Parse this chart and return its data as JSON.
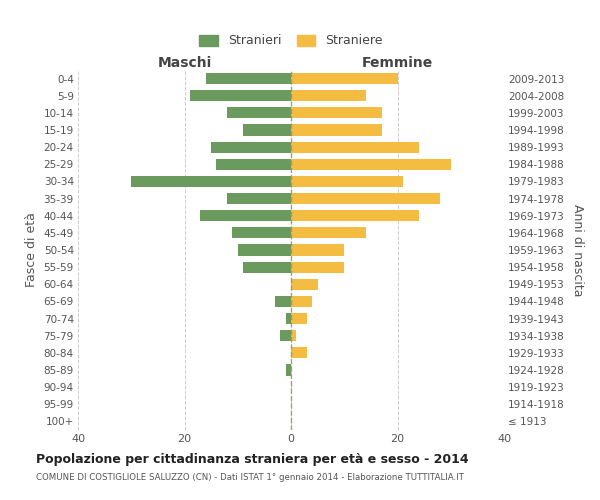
{
  "age_groups": [
    "100+",
    "95-99",
    "90-94",
    "85-89",
    "80-84",
    "75-79",
    "70-74",
    "65-69",
    "60-64",
    "55-59",
    "50-54",
    "45-49",
    "40-44",
    "35-39",
    "30-34",
    "25-29",
    "20-24",
    "15-19",
    "10-14",
    "5-9",
    "0-4"
  ],
  "birth_years": [
    "≤ 1913",
    "1914-1918",
    "1919-1923",
    "1924-1928",
    "1929-1933",
    "1934-1938",
    "1939-1943",
    "1944-1948",
    "1949-1953",
    "1954-1958",
    "1959-1963",
    "1964-1968",
    "1969-1973",
    "1974-1978",
    "1979-1983",
    "1984-1988",
    "1989-1993",
    "1994-1998",
    "1999-2003",
    "2004-2008",
    "2009-2013"
  ],
  "males": [
    0,
    0,
    0,
    1,
    0,
    2,
    1,
    3,
    0,
    9,
    10,
    11,
    17,
    12,
    30,
    14,
    15,
    9,
    12,
    19,
    16
  ],
  "females": [
    0,
    0,
    0,
    0,
    3,
    1,
    3,
    4,
    5,
    10,
    10,
    14,
    24,
    28,
    21,
    30,
    24,
    17,
    17,
    14,
    20
  ],
  "male_color": "#6a9a5e",
  "female_color": "#f5bc42",
  "title": "Popolazione per cittadinanza straniera per età e sesso - 2014",
  "subtitle": "COMUNE DI COSTIGLIOLE SALUZZO (CN) - Dati ISTAT 1° gennaio 2014 - Elaborazione TUTTITALIA.IT",
  "ylabel_left": "Fasce di età",
  "ylabel_right": "Anni di nascita",
  "xlabel_left": "Maschi",
  "xlabel_right": "Femmine",
  "legend_males": "Stranieri",
  "legend_females": "Straniere",
  "xlim": 40,
  "background_color": "#ffffff",
  "grid_color": "#cccccc"
}
